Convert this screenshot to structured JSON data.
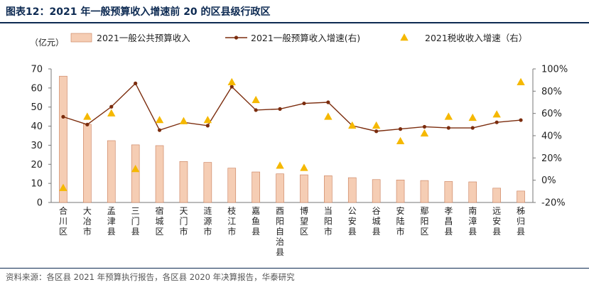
{
  "title": "图表12：2021 年一般预算收入增速前 20 的区县级行政区",
  "source": "资料来源：各区县 2021 年预算执行报告，各区县 2020 年决算报告，华泰研究",
  "chart_data": {
    "type": "bar",
    "y_left_unit": "（亿元）",
    "categories": [
      "合川区",
      "大冶市",
      "孟津县",
      "三门县",
      "宿城区",
      "天门市",
      "涟源市",
      "枝江市",
      "嘉鱼县",
      "酉阳自治县",
      "博望区",
      "当阳市",
      "公安县",
      "谷城县",
      "安陆市",
      "鄢阳区",
      "孝昌县",
      "南漳县",
      "远安县",
      "秭归县"
    ],
    "series": [
      {
        "name": "2021一般公共预算收入",
        "type": "bar",
        "axis": "left",
        "color": "#f5cdb4",
        "values": [
          66.2,
          41.0,
          32.4,
          30.2,
          29.8,
          21.5,
          21.0,
          18.0,
          16.0,
          15.0,
          14.5,
          14.0,
          13.0,
          12.0,
          11.8,
          11.5,
          11.0,
          10.8,
          7.5,
          6.0
        ]
      },
      {
        "name": "2021一般预算收入增速(右)",
        "type": "line",
        "axis": "right",
        "color": "#7b2c0d",
        "values": [
          57,
          50,
          66,
          87,
          45,
          52,
          49,
          84,
          63,
          64,
          69,
          70,
          49,
          44,
          46,
          48,
          47,
          47,
          52,
          54
        ]
      },
      {
        "name": "2021税收收入增速（右）",
        "type": "scatter",
        "axis": "right",
        "color": "#f5b800",
        "values": [
          -7,
          57,
          60,
          10,
          54,
          53,
          54,
          88,
          72,
          13,
          11,
          57,
          49,
          49,
          35,
          42,
          57,
          56,
          59,
          88
        ]
      }
    ],
    "y_left": {
      "min": 0,
      "max": 70,
      "step": 10,
      "ticks": [
        "0",
        "10",
        "20",
        "30",
        "40",
        "50",
        "60",
        "70"
      ]
    },
    "y_right": {
      "min": -20,
      "max": 100,
      "step": 20,
      "ticks": [
        "-20%",
        "0%",
        "20%",
        "40%",
        "60%",
        "80%",
        "100%"
      ]
    }
  }
}
